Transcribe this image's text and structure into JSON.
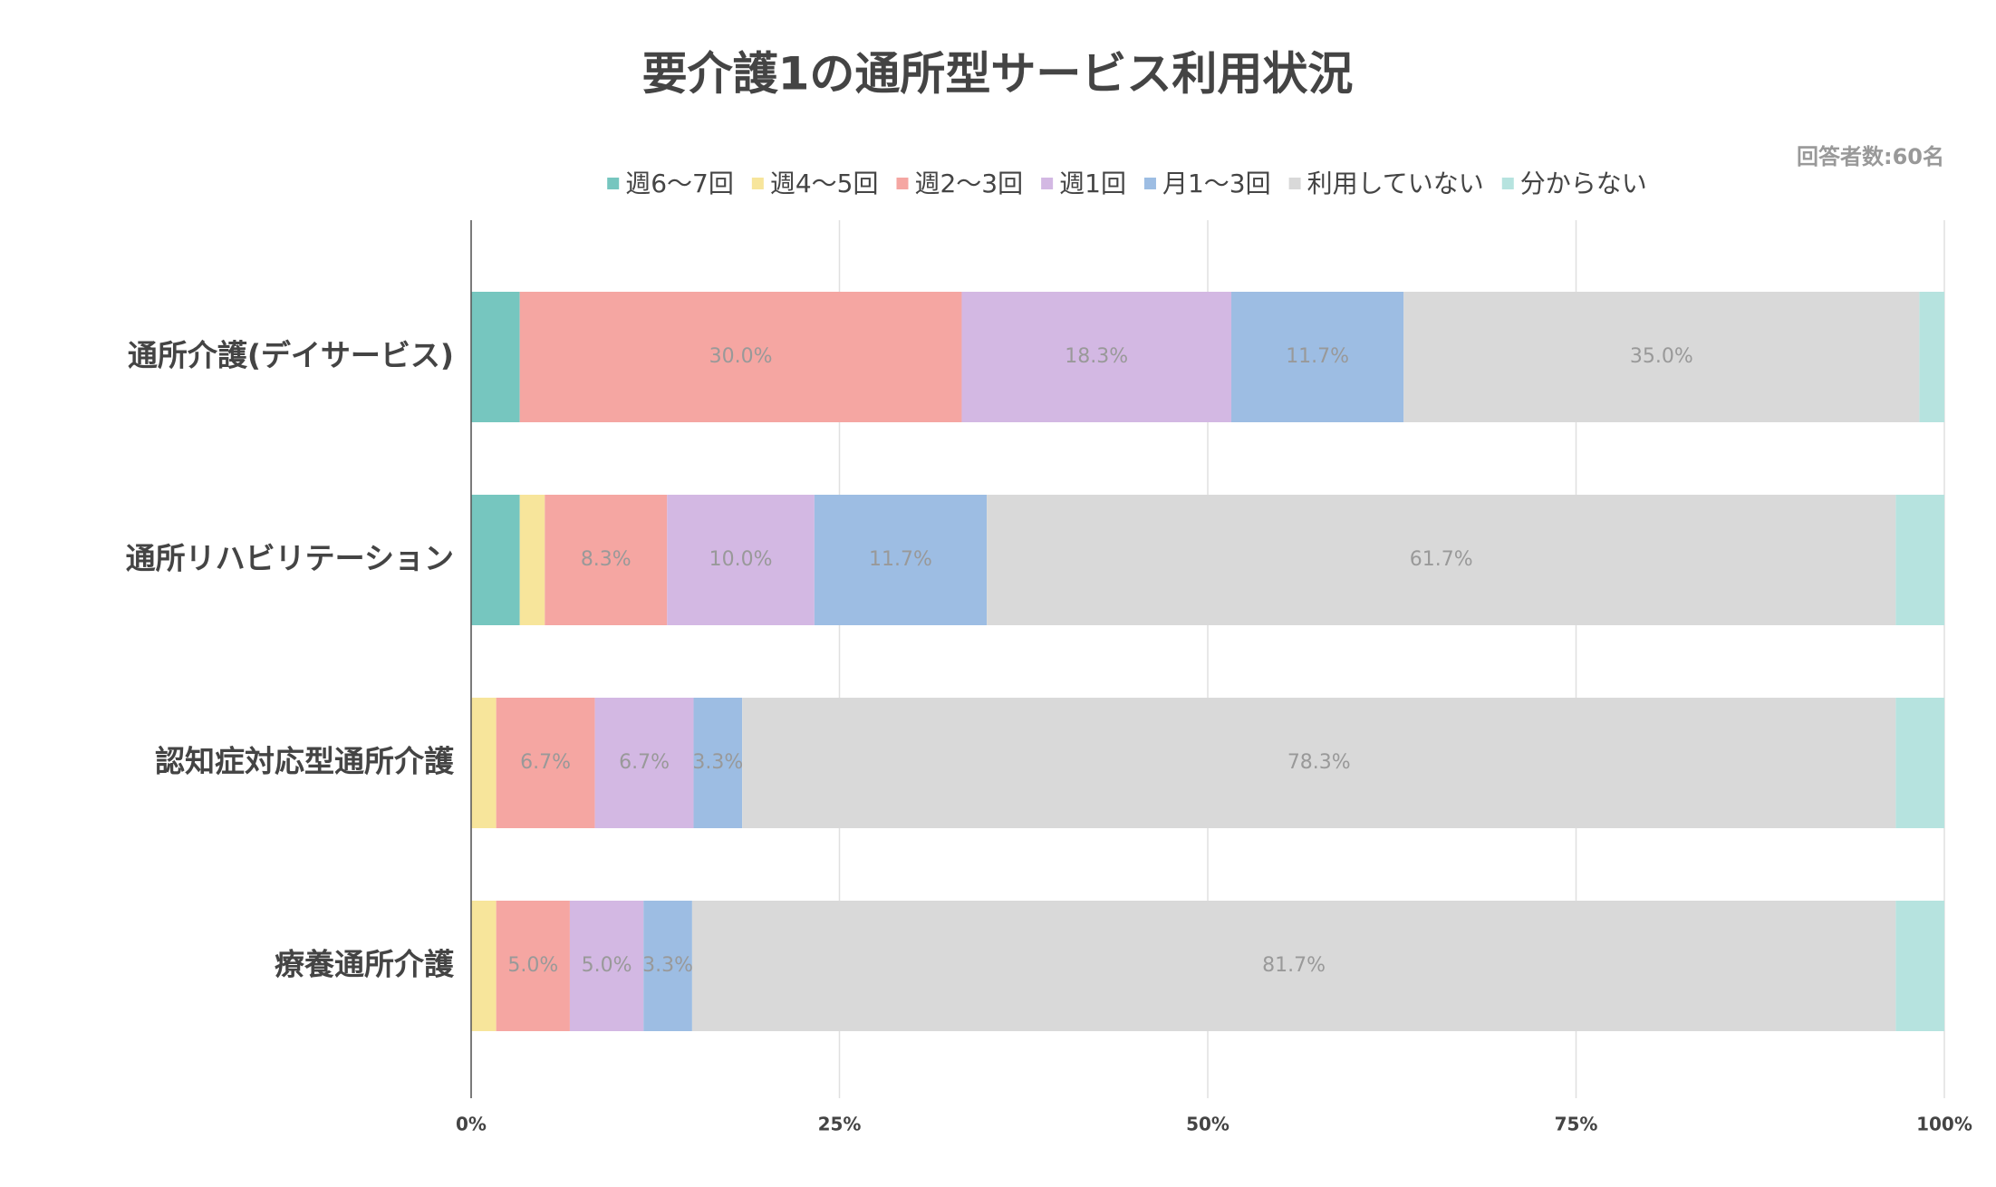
{
  "chart_data": {
    "type": "stacked-barh",
    "title": "要介護1の通所型サービス利用状況",
    "note": "回答者数:60名",
    "categories": [
      "通所介護(デイサービス)",
      "通所リハビリテーション",
      "認知症対応型通所介護",
      "療養通所介護"
    ],
    "series": [
      {
        "name": "週6〜7回",
        "color": "#76c6bf",
        "values": [
          3.3,
          3.3,
          0,
          0
        ],
        "value_labels": [
          null,
          null,
          null,
          null
        ]
      },
      {
        "name": "週4〜5回",
        "color": "#f7e59b",
        "values": [
          0,
          1.7,
          1.7,
          1.7
        ],
        "value_labels": [
          null,
          null,
          null,
          null
        ]
      },
      {
        "name": "週2〜3回",
        "color": "#f5a6a2",
        "values": [
          30.0,
          8.3,
          6.7,
          5.0
        ],
        "value_labels": [
          "30.0%",
          "8.3%",
          "6.7%",
          "5.0%"
        ]
      },
      {
        "name": "週1回",
        "color": "#d3b8e3",
        "values": [
          18.3,
          10.0,
          6.7,
          5.0
        ],
        "value_labels": [
          "18.3%",
          "10.0%",
          "6.7%",
          "5.0%"
        ]
      },
      {
        "name": "月1〜3回",
        "color": "#9dbde3",
        "values": [
          11.7,
          11.7,
          3.3,
          3.3
        ],
        "value_labels": [
          "11.7%",
          "11.7%",
          "3.3%",
          "3.3%"
        ]
      },
      {
        "name": "利用していない",
        "color": "#d9d9d9",
        "values": [
          35.0,
          61.7,
          78.3,
          81.7
        ],
        "value_labels": [
          "35.0%",
          "61.7%",
          "78.3%",
          "81.7%"
        ]
      },
      {
        "name": "分からない",
        "color": "#b6e3df",
        "values": [
          1.7,
          3.3,
          3.3,
          3.3
        ],
        "value_labels": [
          null,
          null,
          null,
          null
        ]
      }
    ],
    "xlim": [
      0,
      100
    ],
    "xticks": [
      {
        "value": 0,
        "label": "0%"
      },
      {
        "value": 25,
        "label": "25%"
      },
      {
        "value": 50,
        "label": "50%"
      },
      {
        "value": 75,
        "label": "75%"
      },
      {
        "value": 100,
        "label": "100%"
      }
    ],
    "grid": true
  }
}
